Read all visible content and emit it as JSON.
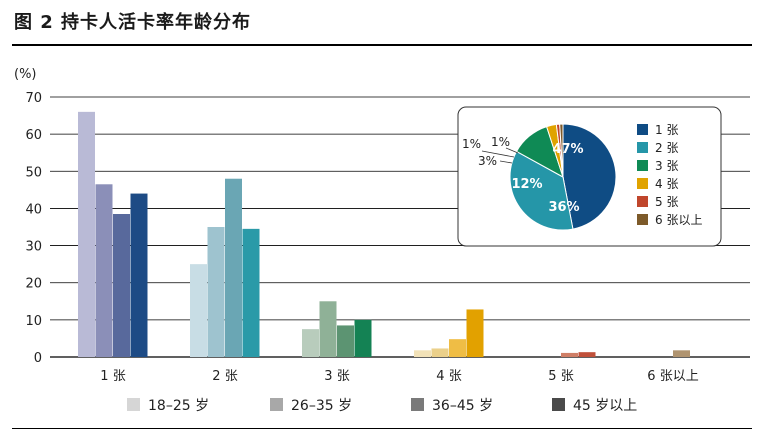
{
  "title": "图 2  持卡人活卡率年龄分布",
  "chart_data": [
    {
      "type": "bar",
      "ylabel": "(%)",
      "ylim": [
        0,
        70
      ],
      "yticks": [
        0,
        10,
        20,
        30,
        40,
        50,
        60,
        70
      ],
      "grid": true,
      "categories": [
        "1 张",
        "2 张",
        "3 张",
        "4 张",
        "5 张",
        "6 张以上"
      ],
      "series": [
        {
          "name": "18–25 岁",
          "legend_color": "#d6d6d6",
          "colors": [
            "#b9bad6",
            "#c8dde5",
            "#b8ccbc",
            "#f2e2b8",
            "#f0cfc4",
            "#e2d6c4"
          ],
          "values": [
            66,
            25,
            7.5,
            1.8,
            0,
            0
          ]
        },
        {
          "name": "26–35 岁",
          "legend_color": "#a8a8a8",
          "colors": [
            "#8b8fb8",
            "#9ec3cf",
            "#8fb197",
            "#ebd08a",
            "#e0a898",
            "#cdb89c"
          ],
          "values": [
            46.5,
            35,
            15,
            2.3,
            0,
            0
          ]
        },
        {
          "name": "36–45 岁",
          "legend_color": "#7a7a7a",
          "colors": [
            "#58699c",
            "#6aa6b4",
            "#5c9472",
            "#efbd45",
            "#cf7e66",
            "#b09470"
          ],
          "values": [
            38.5,
            48,
            8.5,
            4.8,
            1.1,
            1.8
          ]
        },
        {
          "name": "45 岁以上",
          "legend_color": "#4a4a4a",
          "colors": [
            "#1d4b85",
            "#2a9aa8",
            "#148254",
            "#e2a100",
            "#c0503a",
            "#8c6c40"
          ],
          "values": [
            44,
            34.5,
            10,
            12.8,
            1.3,
            0
          ]
        }
      ]
    },
    {
      "type": "pie",
      "values": [
        47,
        36,
        12,
        3,
        1,
        1
      ],
      "labels": [
        "47%",
        "36%",
        "12%",
        "3%",
        "1%",
        "1%"
      ],
      "legend": [
        "1 张",
        "2 张",
        "3 张",
        "4 张",
        "5 张",
        "6 张以上"
      ],
      "colors": [
        "#0f4c84",
        "#2596a8",
        "#0f8a55",
        "#e0a300",
        "#c0462c",
        "#7d5a2a"
      ]
    }
  ]
}
